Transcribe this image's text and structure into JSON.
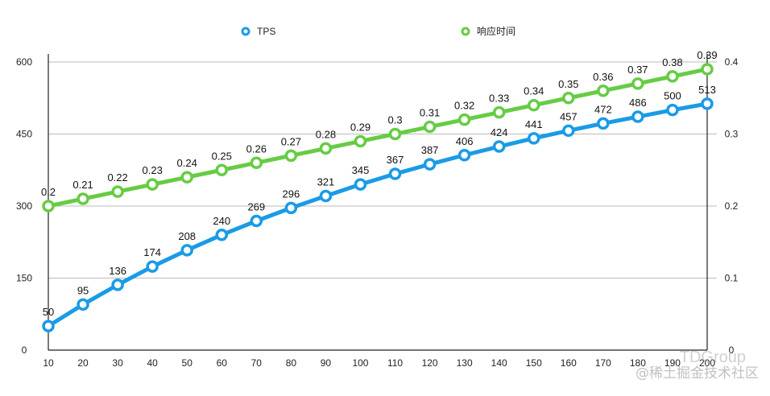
{
  "chart_data": {
    "type": "line",
    "x": [
      10,
      20,
      30,
      40,
      50,
      60,
      70,
      80,
      90,
      100,
      110,
      120,
      130,
      140,
      150,
      160,
      170,
      180,
      190,
      200
    ],
    "x_tick_labels": [
      "10",
      "20",
      "30",
      "40",
      "50",
      "60",
      "70",
      "80",
      "90",
      "100",
      "110",
      "120",
      "130",
      "140",
      "150",
      "160",
      "170",
      "180",
      "190",
      "200"
    ],
    "series": [
      {
        "name": "TPS",
        "axis": "left",
        "color": "#1a9be6",
        "values": [
          50,
          95,
          136,
          174,
          208,
          240,
          269,
          296,
          321,
          345,
          367,
          387,
          406,
          424,
          441,
          457,
          472,
          486,
          500,
          513
        ]
      },
      {
        "name": "响应时间",
        "axis": "right",
        "color": "#66cc44",
        "values": [
          0.2,
          0.21,
          0.22,
          0.23,
          0.24,
          0.25,
          0.26,
          0.27,
          0.28,
          0.29,
          0.3,
          0.31,
          0.32,
          0.33,
          0.34,
          0.35,
          0.36,
          0.37,
          0.38,
          0.39
        ]
      }
    ],
    "y_left": {
      "ylim": [
        0,
        600
      ],
      "ticks": [
        "0",
        "150",
        "300",
        "450",
        "600"
      ]
    },
    "y_right": {
      "ylim": [
        0,
        0.4
      ],
      "ticks": [
        "0",
        "0.1",
        "0.2",
        "0.3",
        "0.4"
      ]
    },
    "grid": true,
    "legend": "top-center"
  },
  "watermark": {
    "line1": "TDGroup",
    "line2": "@稀土掘金技术社区"
  }
}
